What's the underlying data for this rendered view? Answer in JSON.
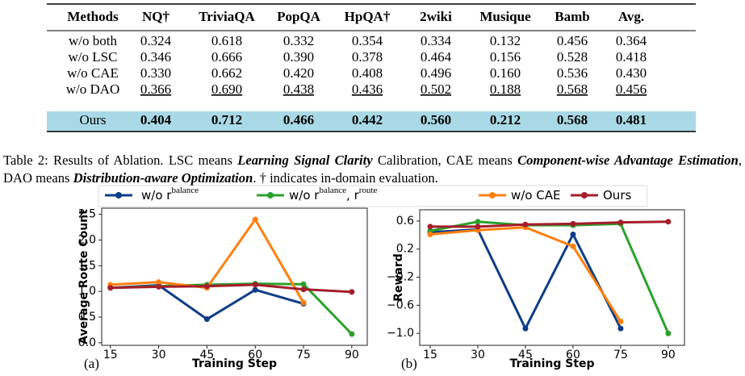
{
  "table": {
    "header": [
      "Methods",
      "NQ†",
      "TriviaQA",
      "PopQA",
      "HpQA†",
      "2wiki",
      "Musique",
      "Bamb",
      "Avg."
    ],
    "rows": [
      {
        "cells": [
          "w/o both",
          "0.324",
          "0.618",
          "0.332",
          "0.354",
          "0.334",
          "0.132",
          "0.456",
          "0.364"
        ],
        "style": "plain"
      },
      {
        "cells": [
          "w/o LSC",
          "0.346",
          "0.666",
          "0.390",
          "0.378",
          "0.464",
          "0.156",
          "0.528",
          "0.418"
        ],
        "style": "plain"
      },
      {
        "cells": [
          "w/o CAE",
          "0.330",
          "0.662",
          "0.420",
          "0.408",
          "0.496",
          "0.160",
          "0.536",
          "0.430"
        ],
        "style": "plain"
      },
      {
        "cells": [
          "w/o DAO",
          "0.366",
          "0.690",
          "0.438",
          "0.436",
          "0.502",
          "0.188",
          "0.568",
          "0.456"
        ],
        "style": "underline"
      },
      {
        "cells": [
          "Ours",
          "0.404",
          "0.712",
          "0.466",
          "0.442",
          "0.560",
          "0.212",
          "0.568",
          "0.481"
        ],
        "style": "bold",
        "highlight": "#a9d9e6"
      }
    ]
  },
  "caption": [
    {
      "text": "Table 2: Results of Ablation. LSC means ",
      "emphasis": false
    },
    {
      "text": "Learning Signal Clarity",
      "emphasis": true
    },
    {
      "text": " Calibration, CAE means ",
      "emphasis": false
    },
    {
      "text": "Component-wise Advantage Estimation",
      "emphasis": true
    },
    {
      "text": ", DAO means ",
      "emphasis": false
    },
    {
      "text": "Distribution-aware Optimization",
      "emphasis": true
    },
    {
      "text": ". † indicates in-domain evaluation.",
      "emphasis": false
    }
  ],
  "chart_data": [
    {
      "type": "line",
      "panel_label": "(a)",
      "x_label": "Training Step",
      "y_label": "Average Route Count",
      "x": [
        15,
        30,
        45,
        60,
        75,
        90
      ],
      "xlim": [
        12.3,
        94.8
      ],
      "xticks": [
        15,
        30,
        45,
        60,
        75,
        90
      ],
      "ylim": [
        -0.05,
        2.62
      ],
      "yticks": [
        {
          "value": 0,
          "label": "0.0"
        },
        {
          "value": 0.5,
          "label": "0.5"
        },
        {
          "value": 1,
          "label": "1.0"
        },
        {
          "value": 1.5,
          "label": "1.5"
        },
        {
          "value": 2,
          "label": "2.0"
        },
        {
          "value": 2.5,
          "label": "2.5"
        }
      ],
      "series": [
        {
          "name": "w/o r^balance",
          "color": "#0e3d87",
          "values": [
            1.07,
            1.12,
            0.46,
            1.03,
            0.76,
            null
          ]
        },
        {
          "name": "w/o r^balance, r^route",
          "color": "#2ca02c",
          "values": [
            1.07,
            1.1,
            1.13,
            1.15,
            1.14,
            0.17
          ]
        },
        {
          "name": "w/o CAE",
          "color": "#ff7f0e",
          "values": [
            1.13,
            1.18,
            1.07,
            2.4,
            0.78,
            null
          ]
        },
        {
          "name": "Ours",
          "color": "#a51d2b",
          "values": [
            1.07,
            1.09,
            1.1,
            1.13,
            1.04,
            0.99
          ]
        }
      ]
    },
    {
      "type": "line",
      "panel_label": "(b)",
      "x_label": "Training Step",
      "y_label": "Reward",
      "x": [
        15,
        30,
        45,
        60,
        75,
        90
      ],
      "xlim": [
        11.7,
        95.1
      ],
      "xticks": [
        15,
        30,
        45,
        60,
        75,
        90
      ],
      "ylim": [
        -1.17,
        0.76
      ],
      "yticks": [
        {
          "value": 0.6,
          "label": "0.6"
        },
        {
          "value": 0.2,
          "label": "0.2"
        },
        {
          "value": -0.2,
          "label": "−0.2"
        },
        {
          "value": -0.6,
          "label": "−0.6"
        },
        {
          "value": -1,
          "label": "−1.0"
        }
      ],
      "series": [
        {
          "name": "w/o r^balance",
          "color": "#0e3d87",
          "values": [
            0.44,
            0.48,
            -0.93,
            0.41,
            -0.93,
            null
          ]
        },
        {
          "name": "w/o r^balance, r^route",
          "color": "#2ca02c",
          "values": [
            0.46,
            0.59,
            0.54,
            0.54,
            0.56,
            -1.0
          ]
        },
        {
          "name": "w/o CAE",
          "color": "#ff7f0e",
          "values": [
            0.41,
            0.47,
            0.51,
            0.24,
            -0.83,
            null
          ]
        },
        {
          "name": "Ours",
          "color": "#a51d2b",
          "values": [
            0.52,
            0.52,
            0.55,
            0.56,
            0.58,
            0.59
          ]
        }
      ]
    }
  ]
}
